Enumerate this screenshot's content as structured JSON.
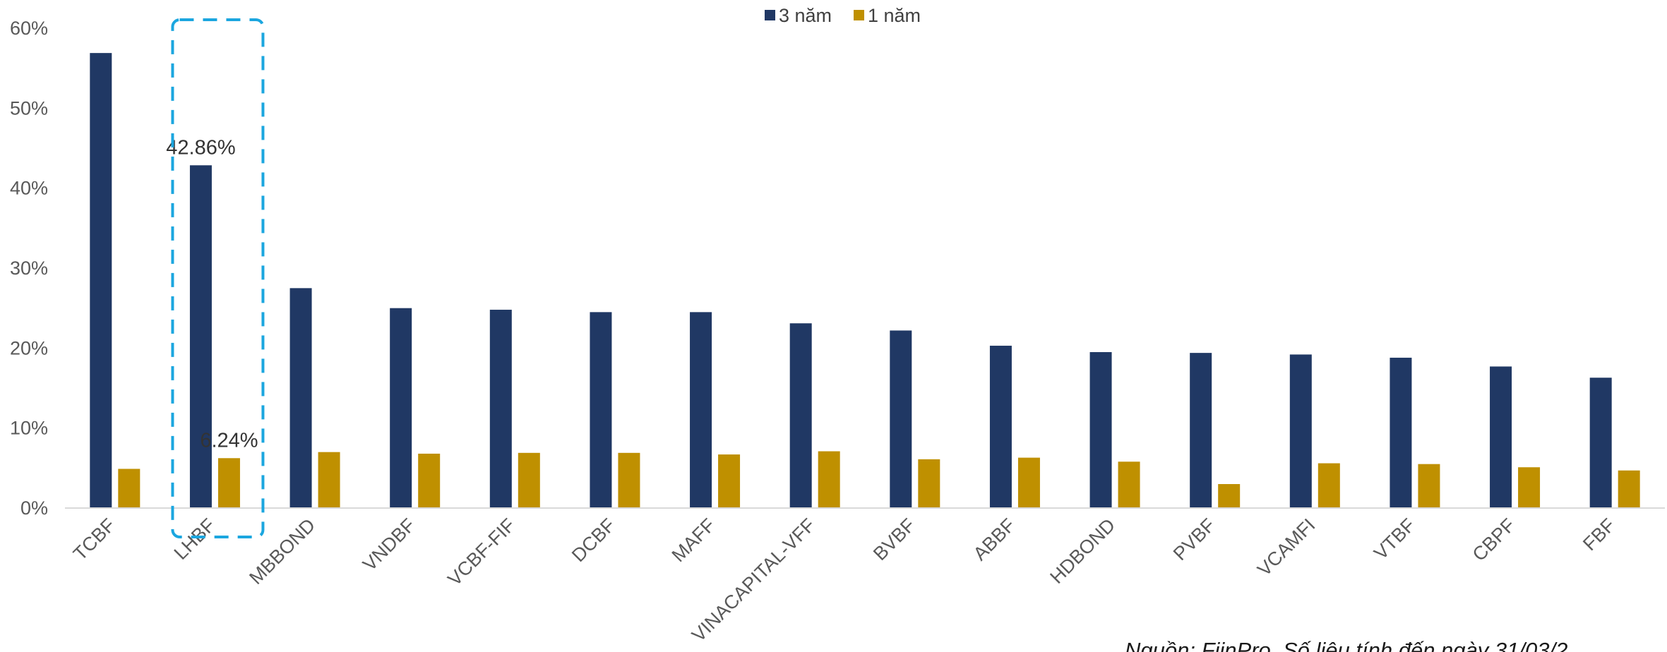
{
  "chart_data": {
    "type": "bar",
    "categories": [
      "TCBF",
      "LHBF",
      "MBBOND",
      "VNDBF",
      "VCBF-FIF",
      "DCBF",
      "MAFF",
      "VINACAPITAL-VFF",
      "BVBF",
      "ABBF",
      "HDBOND",
      "PVBF",
      "VCAMFI",
      "VTBF",
      "CBPF",
      "FBF"
    ],
    "series": [
      {
        "name": "3 năm",
        "color": "#203864",
        "values": [
          56.9,
          42.86,
          27.5,
          25.0,
          24.8,
          24.5,
          24.5,
          23.1,
          22.2,
          20.3,
          19.5,
          19.4,
          19.2,
          18.8,
          17.7,
          16.3
        ]
      },
      {
        "name": "1 năm",
        "color": "#BF9000",
        "values": [
          4.9,
          6.24,
          7.0,
          6.8,
          6.9,
          6.9,
          6.7,
          7.1,
          6.1,
          6.3,
          5.8,
          3.0,
          5.6,
          5.5,
          5.1,
          4.7
        ]
      }
    ],
    "yticks": [
      "0%",
      "10%",
      "20%",
      "30%",
      "40%",
      "50%",
      "60%"
    ],
    "ylim": [
      0,
      60
    ],
    "data_labels": [
      {
        "category": "LHBF",
        "series": "3 năm",
        "text": "42.86%"
      },
      {
        "category": "LHBF",
        "series": "1 năm",
        "text": "6.24%"
      }
    ],
    "highlight": {
      "category": "LHBF",
      "style": "dashed",
      "color": "#1BA6DF"
    },
    "legend_position": "top-center",
    "grid": false,
    "source": "Nguồn: FiinPro. Số liệu tính đến ngày 31/03/2"
  }
}
